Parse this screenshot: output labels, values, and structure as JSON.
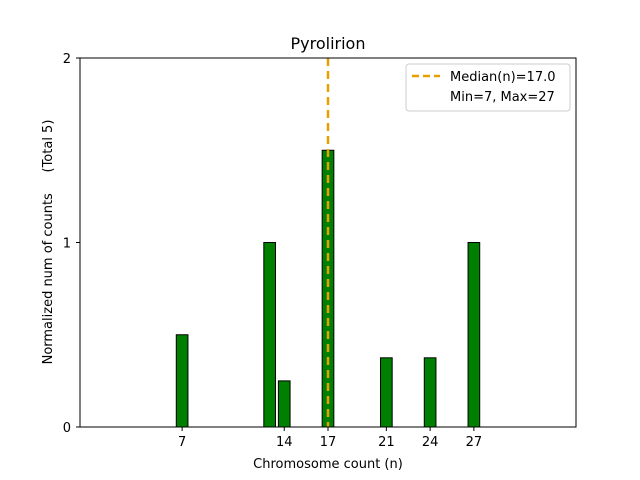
{
  "chart_data": {
    "type": "bar",
    "title": "Pyrolirion",
    "xlabel": "Chromosome count (n)",
    "ylabel": "Normalized num of counts     (Total 5)",
    "xlim": [
      0,
      34
    ],
    "ylim": [
      0,
      2
    ],
    "xticks": [
      7,
      14,
      17,
      21,
      24,
      27
    ],
    "yticks": [
      0,
      1,
      2
    ],
    "bar_width": 0.8,
    "series": [
      {
        "name": "counts",
        "x": [
          7,
          13,
          14,
          17,
          21,
          24,
          27
        ],
        "values": [
          0.5,
          1.0,
          0.25,
          1.5,
          0.375,
          0.375,
          1.0
        ]
      }
    ],
    "median": 17.0,
    "legend": {
      "position": "top-right",
      "entries": [
        "Median(n)=17.0",
        "Min=7, Max=27"
      ]
    },
    "colors": {
      "bar_fill": "#008000",
      "bar_edge": "#000000",
      "median_line": "#E8A000"
    }
  }
}
